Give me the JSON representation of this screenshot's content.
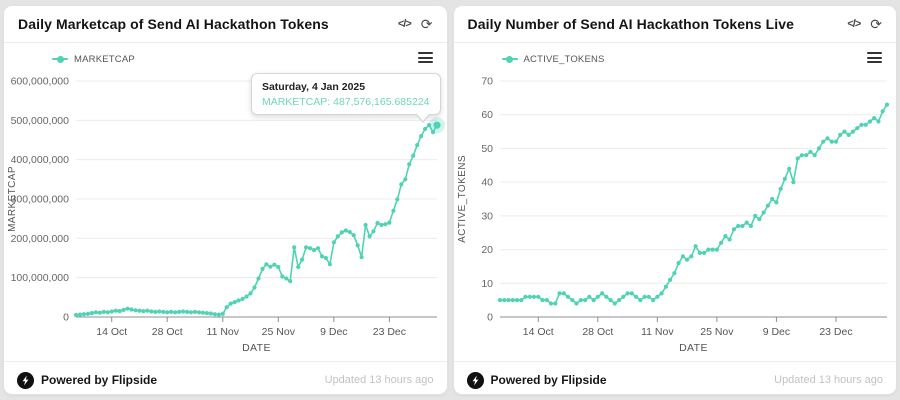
{
  "accent_color": "#50d2b4",
  "tooltip_value_color": "#6ed6bd",
  "icons": {
    "embed_code": "</>",
    "refresh": "⟳"
  },
  "panels": [
    {
      "title": "Daily Marketcap of Send AI Hackathon Tokens",
      "legend_label": "MARKETCAP",
      "tooltip": {
        "date": "Saturday, 4 Jan 2025",
        "value_line": "MARKETCAP: 487,576,165.685224"
      },
      "footer": {
        "powered_by": "Powered by Flipside",
        "updated": "Updated 13 hours ago"
      },
      "chart_data": {
        "type": "line",
        "title": "Daily Marketcap of Send AI Hackathon Tokens",
        "xlabel": "DATE",
        "ylabel": "MARKETCAP",
        "x_interval": "daily",
        "x_range": "5 Oct 2024 to 4 Jan 2025",
        "x_tick_labels": [
          "14 Oct",
          "28 Oct",
          "11 Nov",
          "25 Nov",
          "9 Dec",
          "23 Dec"
        ],
        "x_tick_days": [
          9,
          23,
          37,
          51,
          65,
          79
        ],
        "ylim": [
          0,
          600
        ],
        "y_ticks": [
          0,
          100,
          200,
          300,
          400,
          500,
          600
        ],
        "y_tick_labels": [
          "0",
          "100,000,000",
          "200,000,000",
          "300,000,000",
          "400,000,000",
          "500,000,000",
          "600,000,000"
        ],
        "values_unit": "USD millions",
        "grid": "horizontal",
        "legend_position": "top-left",
        "highlight_last": true,
        "last_point_exact_usd": 487576165.685224,
        "series": [
          {
            "name": "MARKETCAP",
            "values": [
              5,
              6,
              7,
              8,
              10,
              12,
              11,
              13,
              12,
              14,
              16,
              15,
              18,
              21,
              19,
              17,
              16,
              15,
              16,
              14,
              13,
              14,
              13,
              12,
              13,
              12,
              13,
              14,
              13,
              12,
              13,
              12,
              11,
              10,
              9,
              7,
              6,
              8,
              25,
              34,
              38,
              42,
              46,
              52,
              60,
              75,
              98,
              122,
              134,
              128,
              133,
              127,
              103,
              98,
              91,
              177,
              127,
              146,
              177,
              175,
              170,
              175,
              154,
              150,
              134,
              190,
              205,
              215,
              220,
              216,
              208,
              182,
              152,
              234,
              205,
              218,
              239,
              234,
              236,
              240,
              270,
              299,
              337,
              350,
              388,
              410,
              437,
              460,
              478,
              488,
              470,
              487.576165685224
            ]
          }
        ]
      }
    },
    {
      "title": "Daily Number of Send AI Hackathon Tokens Live",
      "legend_label": "ACTIVE_TOKENS",
      "footer": {
        "powered_by": "Powered by Flipside",
        "updated": "Updated 13 hours ago"
      },
      "chart_data": {
        "type": "line",
        "title": "Daily Number of Send AI Hackathon Tokens Live",
        "xlabel": "DATE",
        "ylabel": "ACTIVE_TOKENS",
        "x_interval": "daily",
        "x_range": "5 Oct 2024 to 4 Jan 2025",
        "x_tick_labels": [
          "14 Oct",
          "28 Oct",
          "11 Nov",
          "25 Nov",
          "9 Dec",
          "23 Dec"
        ],
        "x_tick_days": [
          9,
          23,
          37,
          51,
          65,
          79
        ],
        "ylim": [
          0,
          70
        ],
        "y_ticks": [
          0,
          10,
          20,
          30,
          40,
          50,
          60,
          70
        ],
        "y_tick_labels": [
          "0",
          "10",
          "20",
          "30",
          "40",
          "50",
          "60",
          "70"
        ],
        "values_unit": "tokens",
        "grid": "horizontal",
        "legend_position": "top-left",
        "highlight_last": false,
        "series": [
          {
            "name": "ACTIVE_TOKENS",
            "values": [
              5,
              5,
              5,
              5,
              5,
              5,
              6,
              6,
              6,
              6,
              5,
              5,
              4,
              4,
              7,
              7,
              6,
              5,
              4,
              5,
              5,
              6,
              5,
              6,
              7,
              6,
              5,
              4,
              5,
              6,
              7,
              7,
              6,
              5,
              6,
              6,
              5,
              6,
              7,
              9,
              11,
              13,
              16,
              18,
              17,
              18,
              21,
              19,
              19,
              20,
              20,
              20,
              22,
              24,
              23,
              26,
              27,
              27,
              28,
              27,
              30,
              29,
              31,
              33,
              35,
              34,
              38,
              41,
              44,
              40,
              47,
              48,
              48,
              49,
              48,
              50,
              52,
              53,
              52,
              52,
              54,
              55,
              54,
              55,
              56,
              57,
              57,
              58,
              59,
              58,
              61,
              63
            ]
          }
        ]
      }
    }
  ]
}
